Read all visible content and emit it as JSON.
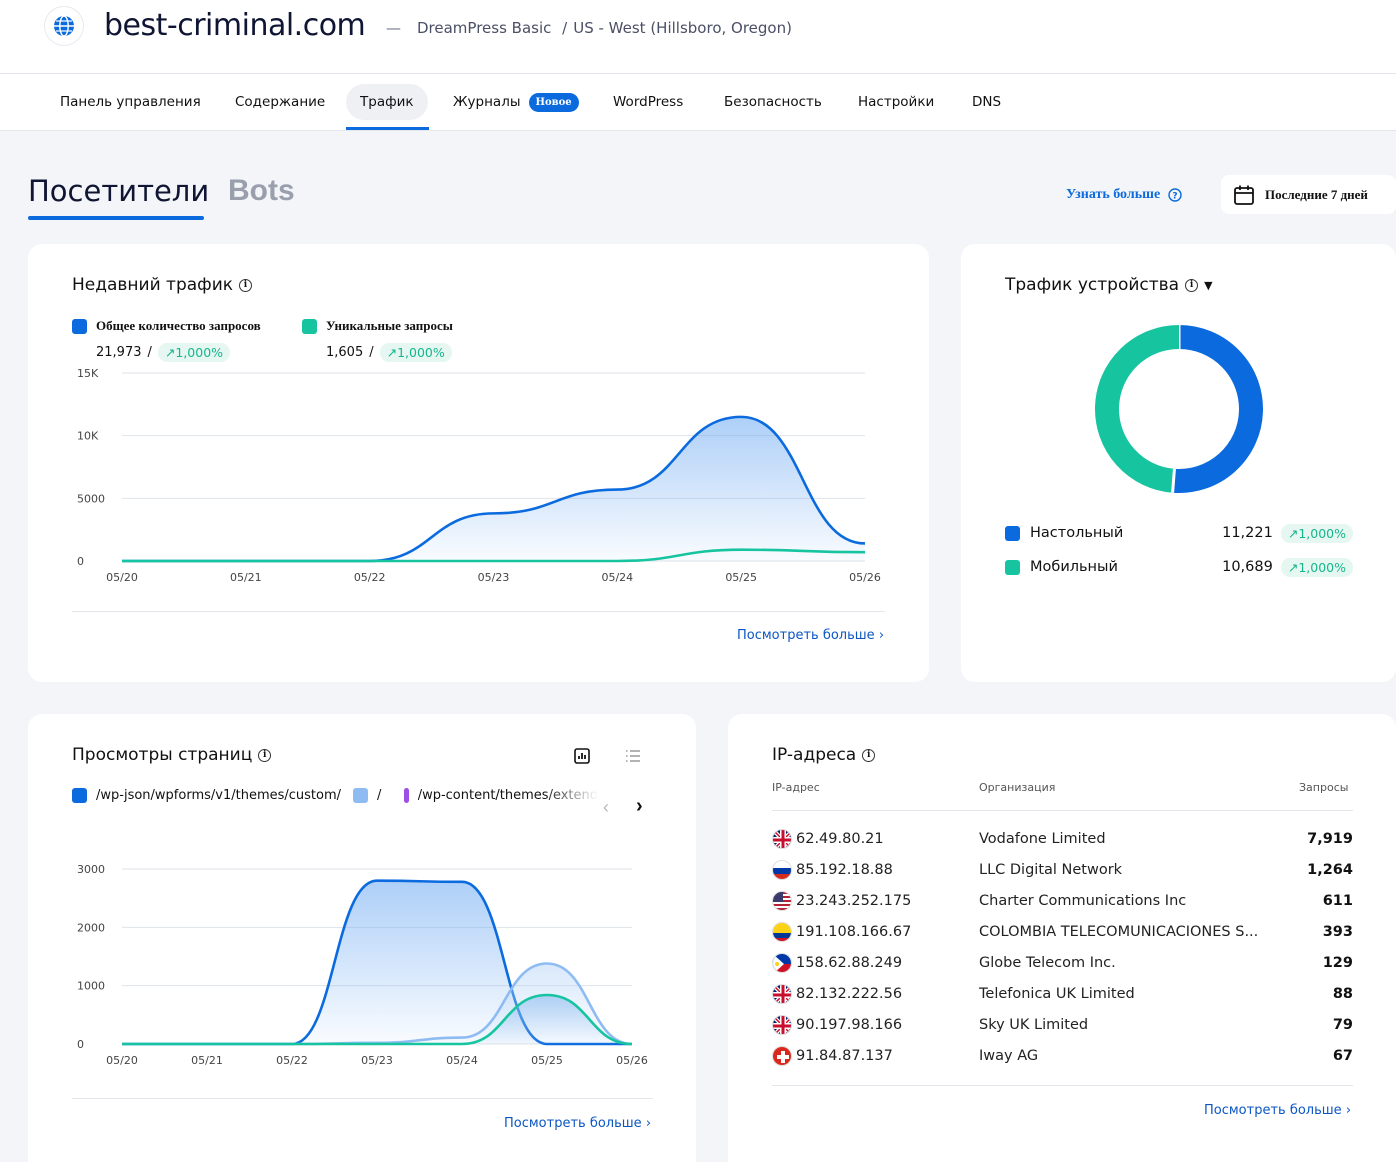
{
  "header": {
    "site_name": "best-criminal.com",
    "separator": "—",
    "plan": "DreamPress Basic",
    "slash": "/",
    "location": "US - West (Hillsboro, Oregon)"
  },
  "nav_tabs": [
    {
      "label": "Панель управления"
    },
    {
      "label": "Содержание"
    },
    {
      "label": "Трафик",
      "active": true
    },
    {
      "label": "Журналы",
      "badge": "Новое"
    },
    {
      "label": "WordPress"
    },
    {
      "label": "Безопасность"
    },
    {
      "label": "Настройки"
    },
    {
      "label": "DNS"
    }
  ],
  "mode_tabs": {
    "visitors": "Посетители",
    "bots": "Bots"
  },
  "learn_more": "Узнать больше",
  "date_range": "Последние 7 дней",
  "colors": {
    "blue": "#0b6bde",
    "teal": "#17c4a0",
    "light_blue": "#8ebcf2",
    "purple": "#9c4ee6",
    "accent_green": "#17b58d"
  },
  "recent_traffic": {
    "title": "Недавний трафик",
    "total_label": "Общее количество запросов",
    "total_value": "21,973",
    "total_change": "1,000%",
    "unique_label": "Уникальные запросы",
    "unique_value": "1,605",
    "unique_change": "1,000%",
    "slash": "/",
    "see_more": "Посмотреть больше",
    "chart_data": {
      "type": "area",
      "x": [
        "05/20",
        "05/21",
        "05/22",
        "05/23",
        "05/24",
        "05/25",
        "05/26"
      ],
      "y_ticks": [
        "0",
        "5000",
        "10K",
        "15K"
      ],
      "ylim": [
        0,
        15000
      ],
      "series": [
        {
          "name": "Общее количество запросов",
          "values": [
            0,
            0,
            0,
            3800,
            5700,
            11500,
            1400
          ]
        },
        {
          "name": "Уникальные запросы",
          "values": [
            0,
            0,
            0,
            0,
            0,
            900,
            700
          ]
        }
      ]
    }
  },
  "device_traffic": {
    "title": "Трафик устройства",
    "desktop_label": "Настольный",
    "desktop_value": "11,221",
    "desktop_change": "1,000%",
    "mobile_label": "Мобильный",
    "mobile_value": "10,689",
    "mobile_change": "1,000%",
    "chart_data": {
      "type": "pie",
      "categories": [
        "Настольный",
        "Мобильный"
      ],
      "values": [
        11221,
        10689
      ]
    }
  },
  "page_views": {
    "title": "Просмотры страниц",
    "legend": [
      "/wp-json/wpforms/v1/themes/custom/",
      "/",
      "/wp-content/themes/extend"
    ],
    "see_more": "Посмотреть больше",
    "chart_data": {
      "type": "area",
      "x": [
        "05/20",
        "05/21",
        "05/22",
        "05/23",
        "05/24",
        "05/25",
        "05/26"
      ],
      "y_ticks": [
        "0",
        "1000",
        "2000",
        "3000"
      ],
      "ylim": [
        0,
        3000
      ],
      "series": [
        {
          "name": "/wp-json/wpforms/v1/themes/custom/",
          "values": [
            0,
            0,
            0,
            2800,
            2780,
            0,
            0
          ]
        },
        {
          "name": "/",
          "values": [
            0,
            0,
            0,
            20,
            110,
            1380,
            0
          ]
        },
        {
          "name": "/wp-content/themes/extend",
          "values": [
            0,
            0,
            0,
            0,
            0,
            840,
            0
          ]
        }
      ]
    }
  },
  "ip_addresses": {
    "title": "IP-адреса",
    "col_ip": "IP-адрес",
    "col_org": "Организация",
    "col_req": "Запросы",
    "see_more": "Посмотреть больше",
    "rows": [
      {
        "ip": "62.49.80.21",
        "org": "Vodafone Limited",
        "req": "7,919",
        "flag": "uk"
      },
      {
        "ip": "85.192.18.88",
        "org": "LLC Digital Network",
        "req": "1,264",
        "flag": "ru"
      },
      {
        "ip": "23.243.252.175",
        "org": "Charter Communications Inc",
        "req": "611",
        "flag": "us"
      },
      {
        "ip": "191.108.166.67",
        "org": "COLOMBIA TELECOMUNICACIONES S...",
        "req": "393",
        "flag": "co"
      },
      {
        "ip": "158.62.88.249",
        "org": "Globe Telecom Inc.",
        "req": "129",
        "flag": "ph"
      },
      {
        "ip": "82.132.222.56",
        "org": "Telefonica UK Limited",
        "req": "88",
        "flag": "uk"
      },
      {
        "ip": "90.197.98.166",
        "org": "Sky UK Limited",
        "req": "79",
        "flag": "uk"
      },
      {
        "ip": "91.84.87.137",
        "org": "Iway AG",
        "req": "67",
        "flag": "ch"
      }
    ]
  }
}
